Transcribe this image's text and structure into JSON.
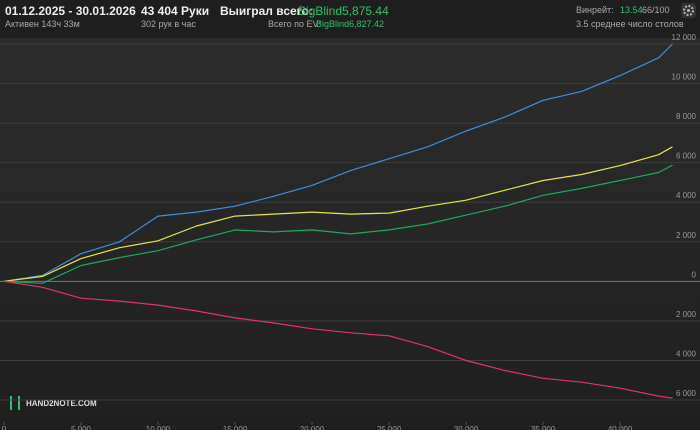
{
  "header": {
    "period": "01.12.2025 - 30.01.2026",
    "active": "Активен 143ч 33м",
    "hands": "43 404 Руки",
    "hands_per_hour": "302 рук в час",
    "won_label": "Выиграл всего:",
    "won_value": "BigBlind5,875.44",
    "ev_label": "Всего по EV:",
    "ev_value": "BigBlind6,827.42",
    "winrate_label": "Винрейт:",
    "winrate_value": "13.54",
    "winrate_unit": "66/100",
    "tables": "3.5 среднее число столов"
  },
  "logo": "HAND2NOTE.COM",
  "chart_data": {
    "type": "line",
    "x": [
      0,
      2500,
      5000,
      7500,
      10000,
      12500,
      15000,
      17500,
      20000,
      22500,
      25000,
      27500,
      30000,
      32500,
      35000,
      37500,
      40000,
      42500,
      43404
    ],
    "series": [
      {
        "color": "#3f8fdc",
        "values": [
          0,
          300,
          1400,
          2000,
          3300,
          3500,
          3800,
          4300,
          4850,
          5600,
          6200,
          6800,
          7600,
          8300,
          9150,
          9600,
          10400,
          11300,
          12000
        ]
      },
      {
        "color": "#e6e64a",
        "values": [
          0,
          250,
          1150,
          1700,
          2050,
          2800,
          3300,
          3400,
          3500,
          3400,
          3450,
          3800,
          4100,
          4600,
          5100,
          5400,
          5850,
          6400,
          6800
        ]
      },
      {
        "color": "#1fa85c",
        "values": [
          0,
          -100,
          800,
          1200,
          1550,
          2100,
          2600,
          2500,
          2600,
          2400,
          2600,
          2900,
          3350,
          3800,
          4350,
          4700,
          5100,
          5500,
          5875
        ]
      },
      {
        "color": "#e0336a",
        "values": [
          0,
          -300,
          -850,
          -1000,
          -1200,
          -1500,
          -1850,
          -2100,
          -2400,
          -2600,
          -2750,
          -3300,
          -4000,
          -4500,
          -4900,
          -5100,
          -5400,
          -5800,
          -5900
        ]
      }
    ],
    "xlim": [
      0,
      43500
    ],
    "ylim": [
      -6200,
      12200
    ],
    "xticks": [
      0,
      {
        "value": 5000,
        "label": "5 000"
      },
      {
        "value": 10000,
        "label": "10 000"
      },
      {
        "value": 15000,
        "label": "15 000"
      },
      {
        "value": 20000,
        "label": "20 000"
      },
      {
        "value": 25000,
        "label": "25 000"
      },
      {
        "value": 30000,
        "label": "30 000"
      },
      {
        "value": 35000,
        "label": "35 000"
      },
      {
        "value": 40000,
        "label": "40 000"
      }
    ],
    "yticks": [
      {
        "value": 12000,
        "label": "12 000"
      },
      {
        "value": 10000,
        "label": "10 000"
      },
      {
        "value": 8000,
        "label": "8 000"
      },
      {
        "value": 6000,
        "label": "6 000"
      },
      {
        "value": 4000,
        "label": "4 000"
      },
      {
        "value": 2000,
        "label": "2 000"
      },
      0,
      {
        "value": -2000,
        "label": "2 000"
      },
      {
        "value": -4000,
        "label": "4 000"
      },
      {
        "value": -6000,
        "label": "6 000"
      }
    ],
    "grid": true
  }
}
